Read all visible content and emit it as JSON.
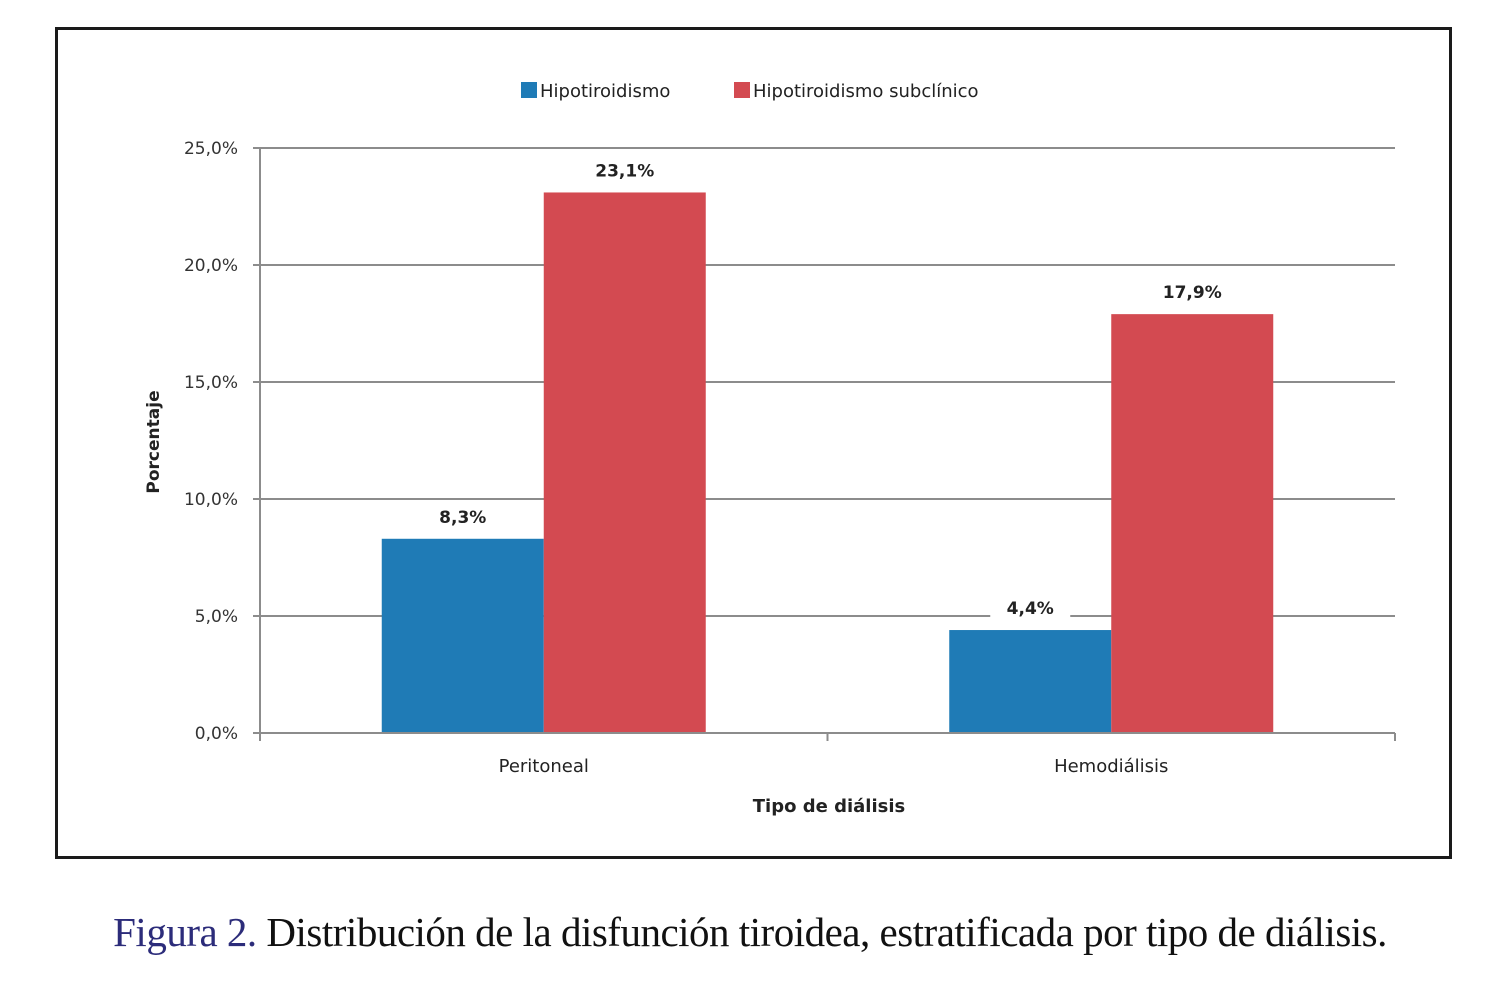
{
  "chart_data": {
    "type": "bar",
    "title": "",
    "xlabel": "Tipo de diálisis",
    "ylabel": "Porcentaje",
    "categories": [
      "Peritoneal",
      "Hemodiálisis"
    ],
    "series": [
      {
        "name": "Hipotiroidismo",
        "color": "#1f7bb6",
        "values": [
          8.3,
          4.4
        ],
        "labels": [
          "8,3%",
          "4,4%"
        ]
      },
      {
        "name": "Hipotiroidismo subclínico",
        "color": "#d34a51",
        "values": [
          23.1,
          17.9
        ],
        "labels": [
          "23,1%",
          "17,9%"
        ]
      }
    ],
    "ylim": [
      0,
      25
    ],
    "yticks": [
      0,
      5,
      10,
      15,
      20,
      25
    ],
    "ytick_labels": [
      "0,0%",
      "5,0%",
      "10,0%",
      "15,0%",
      "20,0%",
      "25,0%"
    ],
    "grid": true,
    "legend_position": "top-center"
  },
  "caption": {
    "figure_label": "Figura 2.",
    "text": " Distribución de la disfunción tiroidea, estratificada por tipo de diálisis."
  }
}
